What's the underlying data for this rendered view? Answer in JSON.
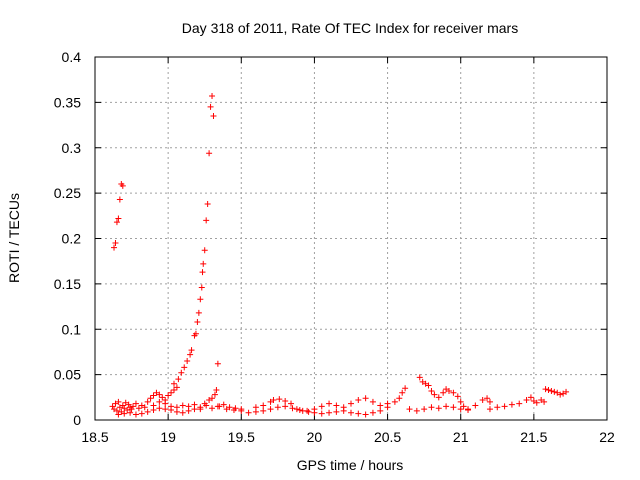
{
  "chart_data": {
    "type": "scatter",
    "title": "Day 318 of 2011, Rate Of TEC Index for receiver mars",
    "xlabel": "GPS time / hours",
    "ylabel": "ROTI / TECUs",
    "xlim": [
      18.5,
      22
    ],
    "ylim": [
      0,
      0.4
    ],
    "x_ticks": [
      "18.5",
      "19",
      "19.5",
      "20",
      "20.5",
      "21",
      "21.5",
      "22"
    ],
    "y_ticks": [
      "0",
      "0.05",
      "0.1",
      "0.15",
      "0.2",
      "0.25",
      "0.3",
      "0.35",
      "0.4"
    ],
    "grid": true,
    "marker": "+",
    "series": [
      {
        "color": "#ff0000",
        "points": [
          [
            18.63,
            0.19
          ],
          [
            18.64,
            0.195
          ],
          [
            18.65,
            0.218
          ],
          [
            18.66,
            0.222
          ],
          [
            18.67,
            0.243
          ],
          [
            18.68,
            0.26
          ],
          [
            18.69,
            0.258
          ],
          [
            18.62,
            0.015
          ],
          [
            18.63,
            0.012
          ],
          [
            18.64,
            0.018
          ],
          [
            18.65,
            0.01
          ],
          [
            18.66,
            0.02
          ],
          [
            18.67,
            0.014
          ],
          [
            18.68,
            0.009
          ],
          [
            18.69,
            0.016
          ],
          [
            18.7,
            0.013
          ],
          [
            18.71,
            0.019
          ],
          [
            18.72,
            0.011
          ],
          [
            18.73,
            0.017
          ],
          [
            18.74,
            0.014
          ],
          [
            18.75,
            0.012
          ],
          [
            18.76,
            0.015
          ],
          [
            18.78,
            0.018
          ],
          [
            18.8,
            0.013
          ],
          [
            18.82,
            0.016
          ],
          [
            18.84,
            0.014
          ],
          [
            18.86,
            0.02
          ],
          [
            18.88,
            0.024
          ],
          [
            18.9,
            0.027
          ],
          [
            18.92,
            0.03
          ],
          [
            18.94,
            0.028
          ],
          [
            18.96,
            0.025
          ],
          [
            18.98,
            0.022
          ],
          [
            19.0,
            0.027
          ],
          [
            19.02,
            0.03
          ],
          [
            19.04,
            0.033
          ],
          [
            19.06,
            0.036
          ],
          [
            18.66,
            0.006
          ],
          [
            18.7,
            0.007
          ],
          [
            18.74,
            0.008
          ],
          [
            18.78,
            0.006
          ],
          [
            18.82,
            0.007
          ],
          [
            18.86,
            0.009
          ],
          [
            18.9,
            0.011
          ],
          [
            18.94,
            0.013
          ],
          [
            18.98,
            0.012
          ],
          [
            19.02,
            0.011
          ],
          [
            19.06,
            0.009
          ],
          [
            19.1,
            0.008
          ],
          [
            19.14,
            0.01
          ],
          [
            19.18,
            0.012
          ],
          [
            18.9,
            0.016
          ],
          [
            18.94,
            0.02
          ],
          [
            18.98,
            0.018
          ],
          [
            19.02,
            0.015
          ],
          [
            19.06,
            0.014
          ],
          [
            19.1,
            0.016
          ],
          [
            19.14,
            0.015
          ],
          [
            19.18,
            0.017
          ],
          [
            19.22,
            0.014
          ],
          [
            19.26,
            0.016
          ],
          [
            19.3,
            0.013
          ],
          [
            19.34,
            0.015
          ],
          [
            19.38,
            0.017
          ],
          [
            19.42,
            0.014
          ],
          [
            19.46,
            0.013
          ],
          [
            19.5,
            0.012
          ],
          [
            19.04,
            0.04
          ],
          [
            19.07,
            0.045
          ],
          [
            19.09,
            0.052
          ],
          [
            19.11,
            0.058
          ],
          [
            19.13,
            0.065
          ],
          [
            19.15,
            0.072
          ],
          [
            19.16,
            0.077
          ],
          [
            19.18,
            0.093
          ],
          [
            19.19,
            0.095
          ],
          [
            19.2,
            0.108
          ],
          [
            19.21,
            0.118
          ],
          [
            19.22,
            0.133
          ],
          [
            19.23,
            0.146
          ],
          [
            19.235,
            0.163
          ],
          [
            19.24,
            0.172
          ],
          [
            19.25,
            0.187
          ],
          [
            19.26,
            0.22
          ],
          [
            19.27,
            0.238
          ],
          [
            19.28,
            0.294
          ],
          [
            19.29,
            0.345
          ],
          [
            19.3,
            0.357
          ],
          [
            19.31,
            0.335
          ],
          [
            19.34,
            0.062
          ],
          [
            19.22,
            0.012
          ],
          [
            19.25,
            0.018
          ],
          [
            19.28,
            0.022
          ],
          [
            19.3,
            0.024
          ],
          [
            19.32,
            0.028
          ],
          [
            19.33,
            0.033
          ],
          [
            19.35,
            0.015
          ],
          [
            19.4,
            0.012
          ],
          [
            19.45,
            0.011
          ],
          [
            19.5,
            0.01
          ],
          [
            19.55,
            0.008
          ],
          [
            19.6,
            0.009
          ],
          [
            19.65,
            0.01
          ],
          [
            19.7,
            0.012
          ],
          [
            19.75,
            0.014
          ],
          [
            19.8,
            0.015
          ],
          [
            19.85,
            0.013
          ],
          [
            19.9,
            0.011
          ],
          [
            19.95,
            0.01
          ],
          [
            20.0,
            0.012
          ],
          [
            20.05,
            0.015
          ],
          [
            20.1,
            0.018
          ],
          [
            20.15,
            0.016
          ],
          [
            20.2,
            0.014
          ],
          [
            20.25,
            0.018
          ],
          [
            20.3,
            0.022
          ],
          [
            20.35,
            0.024
          ],
          [
            20.4,
            0.02
          ],
          [
            20.45,
            0.016
          ],
          [
            20.5,
            0.014
          ],
          [
            19.6,
            0.014
          ],
          [
            19.65,
            0.016
          ],
          [
            19.7,
            0.02
          ],
          [
            19.72,
            0.022
          ],
          [
            19.76,
            0.023
          ],
          [
            19.8,
            0.021
          ],
          [
            19.84,
            0.018
          ],
          [
            19.88,
            0.012
          ],
          [
            19.92,
            0.01
          ],
          [
            19.96,
            0.009
          ],
          [
            20.0,
            0.008
          ],
          [
            20.05,
            0.007
          ],
          [
            20.1,
            0.008
          ],
          [
            20.15,
            0.009
          ],
          [
            20.2,
            0.01
          ],
          [
            20.25,
            0.008
          ],
          [
            20.3,
            0.007
          ],
          [
            20.35,
            0.006
          ],
          [
            20.4,
            0.008
          ],
          [
            20.45,
            0.01
          ],
          [
            20.5,
            0.018
          ],
          [
            20.55,
            0.02
          ],
          [
            20.58,
            0.024
          ],
          [
            20.6,
            0.03
          ],
          [
            20.62,
            0.035
          ],
          [
            20.65,
            0.012
          ],
          [
            20.7,
            0.01
          ],
          [
            20.75,
            0.012
          ],
          [
            20.8,
            0.014
          ],
          [
            20.85,
            0.013
          ],
          [
            20.9,
            0.015
          ],
          [
            20.95,
            0.014
          ],
          [
            21.0,
            0.012
          ],
          [
            21.05,
            0.011
          ],
          [
            21.1,
            0.016
          ],
          [
            21.15,
            0.022
          ],
          [
            21.18,
            0.024
          ],
          [
            21.2,
            0.02
          ],
          [
            20.72,
            0.047
          ],
          [
            20.74,
            0.042
          ],
          [
            20.76,
            0.04
          ],
          [
            20.78,
            0.038
          ],
          [
            20.8,
            0.032
          ],
          [
            20.82,
            0.028
          ],
          [
            20.85,
            0.025
          ],
          [
            20.88,
            0.03
          ],
          [
            20.9,
            0.034
          ],
          [
            20.92,
            0.032
          ],
          [
            20.95,
            0.03
          ],
          [
            20.98,
            0.026
          ],
          [
            21.0,
            0.02
          ],
          [
            21.02,
            0.015
          ],
          [
            21.05,
            0.012
          ],
          [
            21.2,
            0.012
          ],
          [
            21.25,
            0.014
          ],
          [
            21.3,
            0.015
          ],
          [
            21.35,
            0.017
          ],
          [
            21.4,
            0.018
          ],
          [
            21.45,
            0.022
          ],
          [
            21.48,
            0.025
          ],
          [
            21.5,
            0.021
          ],
          [
            21.52,
            0.019
          ],
          [
            21.55,
            0.022
          ],
          [
            21.57,
            0.02
          ],
          [
            21.58,
            0.034
          ],
          [
            21.6,
            0.033
          ],
          [
            21.62,
            0.032
          ],
          [
            21.64,
            0.031
          ],
          [
            21.66,
            0.03
          ],
          [
            21.68,
            0.028
          ],
          [
            21.7,
            0.029
          ],
          [
            21.72,
            0.031
          ]
        ]
      }
    ]
  }
}
